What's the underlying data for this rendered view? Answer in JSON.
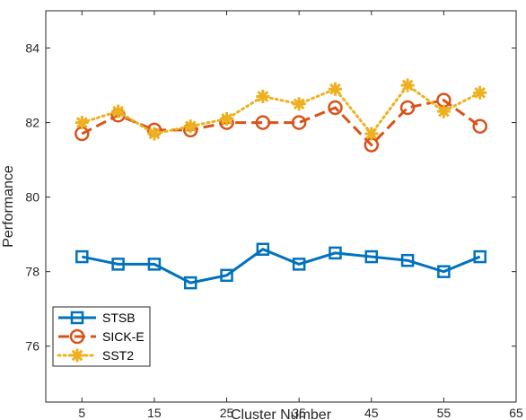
{
  "chart_data": {
    "type": "line",
    "title": "",
    "xlabel": "Cluster Number",
    "ylabel": "Performance",
    "xlim": [
      0,
      65
    ],
    "ylim": [
      74.5,
      85
    ],
    "xticks": [
      5,
      15,
      25,
      35,
      45,
      55,
      65
    ],
    "yticks": [
      76,
      78,
      80,
      82,
      84
    ],
    "x": [
      5,
      10,
      15,
      20,
      25,
      30,
      35,
      40,
      45,
      50,
      55,
      60
    ],
    "grid": false,
    "legend_position": "bottom-left",
    "series": [
      {
        "name": "STSB",
        "color": "#0072BD",
        "line_style": "solid",
        "marker": "square",
        "values": [
          78.4,
          78.2,
          78.2,
          77.7,
          77.9,
          78.6,
          78.2,
          78.5,
          78.4,
          78.3,
          78.0,
          78.4
        ]
      },
      {
        "name": "SICK-E",
        "color": "#D95319",
        "line_style": "dashed",
        "marker": "circle",
        "values": [
          81.7,
          82.2,
          81.8,
          81.8,
          82.0,
          82.0,
          82.0,
          82.4,
          81.4,
          82.4,
          82.6,
          81.9
        ]
      },
      {
        "name": "SST2",
        "color": "#EDB120",
        "line_style": "dotted",
        "marker": "asterisk",
        "values": [
          82.0,
          82.3,
          81.7,
          81.9,
          82.1,
          82.7,
          82.5,
          82.9,
          81.7,
          83.0,
          82.3,
          82.8
        ]
      }
    ]
  }
}
